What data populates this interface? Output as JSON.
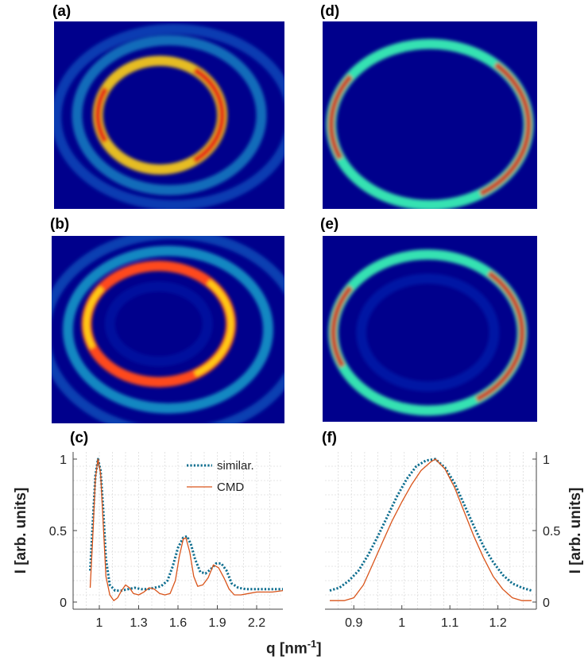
{
  "panel_labels": {
    "a": "(a)",
    "b": "(b)",
    "c": "(c)",
    "d": "(d)",
    "e": "(e)",
    "f": "(f)"
  },
  "xlabel_main": "q [nm",
  "xlabel_sup": "-1",
  "xlabel_close": "]",
  "colors": {
    "similar": "#0e6e8f",
    "cmd": "#d9541a",
    "image_bg": "#00008c"
  },
  "chart_data": [
    {
      "id": "c",
      "type": "line",
      "ylabel": "I [arb. units]",
      "xlim": [
        0.8,
        2.4
      ],
      "ylim": [
        -0.05,
        1.05
      ],
      "xticks": [
        1,
        1.3,
        1.6,
        1.9,
        2.2
      ],
      "xtick_labels": [
        "1",
        "1.3",
        "1.6",
        "1.9",
        "2.2"
      ],
      "yticks": [
        0,
        0.5,
        1
      ],
      "ytick_labels": [
        "0",
        "0.5",
        "1"
      ],
      "legend": {
        "position": "top-right",
        "entries": [
          "similar.",
          "CMD"
        ]
      },
      "grid": true,
      "series": [
        {
          "name": "similar.",
          "style": "dotted",
          "x": [
            0.93,
            0.95,
            0.97,
            0.99,
            1.01,
            1.03,
            1.05,
            1.08,
            1.12,
            1.17,
            1.22,
            1.27,
            1.32,
            1.37,
            1.42,
            1.47,
            1.52,
            1.56,
            1.6,
            1.64,
            1.67,
            1.7,
            1.73,
            1.77,
            1.81,
            1.85,
            1.89,
            1.93,
            1.97,
            2.01,
            2.06,
            2.12,
            2.18,
            2.24,
            2.3,
            2.36,
            2.4
          ],
          "y": [
            0.22,
            0.55,
            0.88,
            1.0,
            0.92,
            0.65,
            0.3,
            0.12,
            0.08,
            0.08,
            0.09,
            0.1,
            0.09,
            0.09,
            0.1,
            0.11,
            0.15,
            0.25,
            0.38,
            0.45,
            0.46,
            0.4,
            0.3,
            0.21,
            0.2,
            0.23,
            0.27,
            0.27,
            0.22,
            0.13,
            0.1,
            0.09,
            0.09,
            0.09,
            0.09,
            0.09,
            0.09
          ]
        },
        {
          "name": "CMD",
          "style": "solid",
          "x": [
            0.93,
            0.95,
            0.97,
            0.99,
            1.01,
            1.03,
            1.05,
            1.08,
            1.11,
            1.14,
            1.17,
            1.2,
            1.23,
            1.26,
            1.3,
            1.34,
            1.38,
            1.42,
            1.46,
            1.5,
            1.54,
            1.58,
            1.61,
            1.64,
            1.66,
            1.69,
            1.72,
            1.75,
            1.79,
            1.83,
            1.87,
            1.91,
            1.95,
            1.99,
            2.03,
            2.08,
            2.14,
            2.2,
            2.26,
            2.32,
            2.4
          ],
          "y": [
            0.1,
            0.45,
            0.86,
            1.0,
            0.9,
            0.55,
            0.18,
            0.05,
            0.01,
            0.03,
            0.08,
            0.12,
            0.1,
            0.06,
            0.05,
            0.07,
            0.1,
            0.09,
            0.06,
            0.05,
            0.06,
            0.15,
            0.32,
            0.44,
            0.45,
            0.35,
            0.18,
            0.11,
            0.12,
            0.17,
            0.26,
            0.24,
            0.17,
            0.09,
            0.05,
            0.05,
            0.06,
            0.07,
            0.07,
            0.07,
            0.08
          ]
        }
      ]
    },
    {
      "id": "f",
      "type": "line",
      "ylabel": "I [arb. units]",
      "ylabel_side": "right",
      "xlim": [
        0.84,
        1.28
      ],
      "ylim": [
        -0.05,
        1.05
      ],
      "xticks": [
        0.9,
        1.0,
        1.1,
        1.2
      ],
      "xtick_labels": [
        "0.9",
        "1",
        "1.1",
        "1.2"
      ],
      "yticks": [
        0,
        0.5,
        1
      ],
      "ytick_labels": [
        "0",
        "0.5",
        "1"
      ],
      "grid": true,
      "series": [
        {
          "name": "similar.",
          "style": "dotted",
          "x": [
            0.85,
            0.87,
            0.89,
            0.91,
            0.93,
            0.95,
            0.97,
            0.99,
            1.01,
            1.03,
            1.05,
            1.07,
            1.09,
            1.11,
            1.13,
            1.15,
            1.17,
            1.19,
            1.21,
            1.23,
            1.25,
            1.27
          ],
          "y": [
            0.08,
            0.1,
            0.15,
            0.22,
            0.33,
            0.46,
            0.6,
            0.74,
            0.86,
            0.95,
            0.99,
            1.0,
            0.94,
            0.83,
            0.68,
            0.53,
            0.39,
            0.28,
            0.19,
            0.13,
            0.1,
            0.08
          ]
        },
        {
          "name": "CMD",
          "style": "solid",
          "x": [
            0.85,
            0.88,
            0.9,
            0.92,
            0.94,
            0.96,
            0.98,
            1.0,
            1.02,
            1.04,
            1.06,
            1.07,
            1.09,
            1.11,
            1.13,
            1.15,
            1.17,
            1.19,
            1.21,
            1.23,
            1.25,
            1.27
          ],
          "y": [
            0.01,
            0.01,
            0.03,
            0.12,
            0.27,
            0.42,
            0.57,
            0.7,
            0.82,
            0.92,
            0.98,
            1.0,
            0.93,
            0.8,
            0.63,
            0.46,
            0.31,
            0.18,
            0.09,
            0.03,
            0.01,
            0.01
          ]
        }
      ]
    }
  ],
  "image_panels": [
    {
      "id": "a",
      "rings": [
        {
          "center": [
            0.46,
            0.5
          ],
          "radius": [
            0.27,
            0.29
          ],
          "color": "#ffd21a",
          "alt_color": "#e21a12",
          "intensity": 0.9
        },
        {
          "center": [
            0.5,
            0.5
          ],
          "radius": [
            0.4,
            0.4
          ],
          "color": "#1eb4d8",
          "alt_color": "#1eb4d8",
          "intensity": 0.6
        },
        {
          "center": [
            0.52,
            0.51
          ],
          "radius": [
            0.51,
            0.47
          ],
          "color": "#1478d8",
          "alt_color": "#1478d8",
          "intensity": 0.5
        }
      ]
    },
    {
      "id": "b",
      "rings": [
        {
          "center": [
            0.46,
            0.47
          ],
          "radius": [
            0.31,
            0.31
          ],
          "color": "#ff4a1a",
          "alt_color": "#ffe01a",
          "intensity": 1.0
        },
        {
          "center": [
            0.46,
            0.47
          ],
          "radius": [
            0.21,
            0.2
          ],
          "color": "#0a2ab8",
          "alt_color": "#0a2ab8",
          "intensity": 0.4
        },
        {
          "center": [
            0.5,
            0.5
          ],
          "radius": [
            0.43,
            0.42
          ],
          "color": "#19c2d8",
          "alt_color": "#19c2d8",
          "intensity": 0.7
        },
        {
          "center": [
            0.52,
            0.52
          ],
          "radius": [
            0.55,
            0.53
          ],
          "color": "#1680d8",
          "alt_color": "#1680d8",
          "intensity": 0.5
        }
      ]
    },
    {
      "id": "d",
      "rings": [
        {
          "center": [
            0.5,
            0.55
          ],
          "radius": [
            0.46,
            0.43
          ],
          "color": "#36e2b2",
          "alt_color": "#e23012",
          "intensity": 1.0
        }
      ]
    },
    {
      "id": "e",
      "rings": [
        {
          "center": [
            0.49,
            0.52
          ],
          "radius": [
            0.44,
            0.42
          ],
          "color": "#36e2b2",
          "alt_color": "#e23012",
          "intensity": 1.0
        },
        {
          "center": [
            0.49,
            0.52
          ],
          "radius": [
            0.31,
            0.29
          ],
          "color": "#0e38c8",
          "alt_color": "#0e38c8",
          "intensity": 0.4
        }
      ]
    }
  ]
}
